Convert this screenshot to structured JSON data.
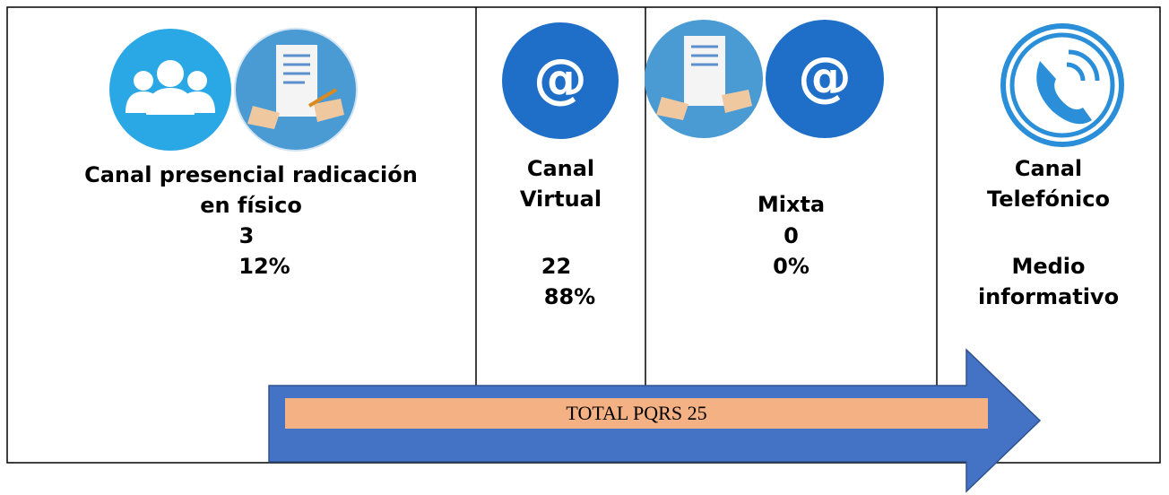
{
  "columns": [
    {
      "label_lines": [
        "Canal presencial radicación",
        "en físico"
      ],
      "count": "3",
      "percent": "12%"
    },
    {
      "label_lines": [
        "Canal",
        "Virtual"
      ],
      "count": "22",
      "percent": "88%"
    },
    {
      "label_lines": [
        "Mixta"
      ],
      "count": "0",
      "percent": "0%"
    },
    {
      "label_lines": [
        "Canal",
        "Telefónico"
      ],
      "note_lines": [
        "Medio",
        "informativo"
      ]
    }
  ],
  "total": "TOTAL PQRS 25"
}
